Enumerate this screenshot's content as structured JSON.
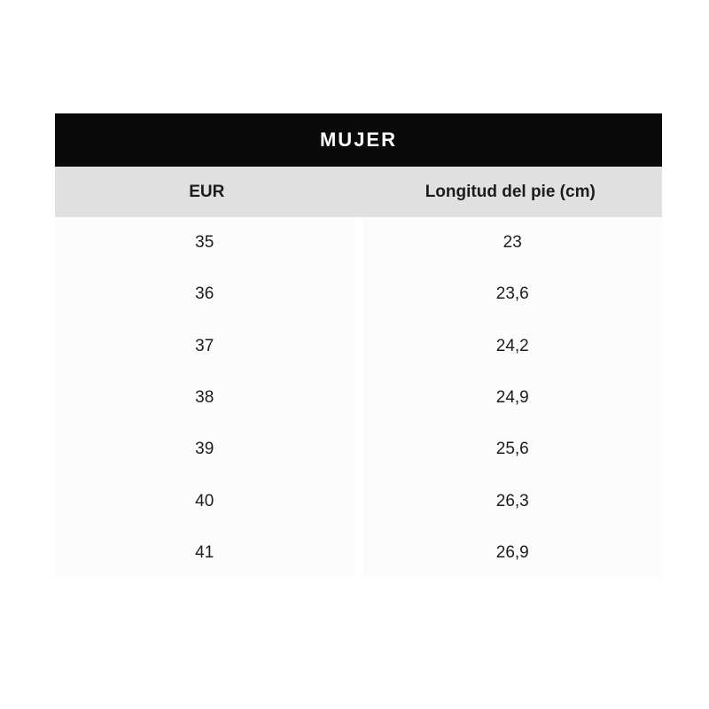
{
  "table": {
    "title": "MUJER",
    "columns": [
      "EUR",
      "Longitud del pie (cm)"
    ],
    "rows": [
      {
        "eur": "35",
        "length_cm": "23"
      },
      {
        "eur": "36",
        "length_cm": "23,6"
      },
      {
        "eur": "37",
        "length_cm": "24,2"
      },
      {
        "eur": "38",
        "length_cm": "24,9"
      },
      {
        "eur": "39",
        "length_cm": "25,6"
      },
      {
        "eur": "40",
        "length_cm": "26,3"
      },
      {
        "eur": "41",
        "length_cm": "26,9"
      }
    ],
    "colors": {
      "header_bg": "#0a0a0a",
      "header_text": "#ffffff",
      "subheader_bg": "#e0e0e0",
      "body_panel_bg": "#fcfcfc",
      "body_text": "#1c1c1c",
      "page_bg": "#ffffff"
    }
  }
}
